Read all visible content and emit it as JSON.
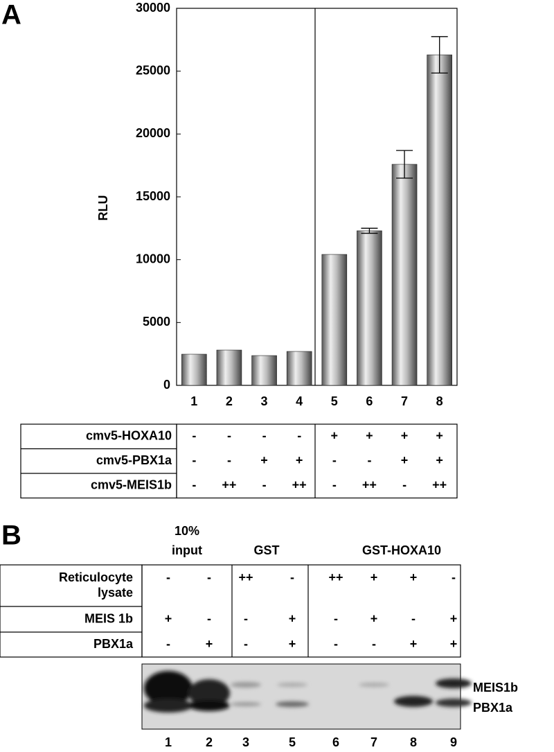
{
  "chart_data": {
    "type": "bar",
    "panel_label": "A",
    "y_label": "RLU",
    "categories": [
      "1",
      "2",
      "3",
      "4",
      "5",
      "6",
      "7",
      "8"
    ],
    "values": [
      2480,
      2810,
      2370,
      2700,
      10420,
      12300,
      17590,
      26300
    ],
    "errors": [
      null,
      null,
      null,
      null,
      null,
      200,
      1100,
      1450
    ],
    "color": "#a8a8a8",
    "ylim": [
      0,
      30000
    ],
    "yticks": [
      0,
      5000,
      10000,
      15000,
      20000,
      25000,
      30000
    ],
    "grid": false
  },
  "panel_a_table": {
    "rows": [
      {
        "label": "cmv5-HOXA10",
        "cells": [
          "-",
          "-",
          "-",
          "-",
          "+",
          "+",
          "+",
          "+"
        ]
      },
      {
        "label": "cmv5-PBX1a",
        "cells": [
          "-",
          "-",
          "+",
          "+",
          "-",
          "-",
          "+",
          "+"
        ]
      },
      {
        "label": "cmv5-MEIS1b",
        "cells": [
          "-",
          "++",
          "-",
          "++",
          "-",
          "++",
          "-",
          "++"
        ]
      }
    ]
  },
  "panel_b": {
    "panel_label": "B",
    "groups": [
      {
        "lines": [
          "10%",
          "input"
        ]
      },
      {
        "lines": [
          "GST"
        ]
      },
      {
        "lines": [
          "GST-HOXA10"
        ]
      }
    ],
    "rows": [
      {
        "label_lines": [
          "Reticulocyte",
          "lysate"
        ],
        "cells": [
          "-",
          "-",
          "++",
          "-",
          "++",
          "+",
          "+",
          "-"
        ]
      },
      {
        "label_lines": [
          "MEIS 1b"
        ],
        "cells": [
          "+",
          "-",
          "-",
          "+",
          "-",
          "+",
          "-",
          "+"
        ]
      },
      {
        "label_lines": [
          "PBX1a"
        ],
        "cells": [
          "-",
          "+",
          "-",
          "+",
          "-",
          "-",
          "+",
          "+"
        ]
      }
    ],
    "band_labels": [
      "MEIS1b",
      "PBX1a"
    ],
    "lanes": [
      "1",
      "2",
      "3",
      "5",
      "6",
      "7",
      "8",
      "9"
    ]
  }
}
